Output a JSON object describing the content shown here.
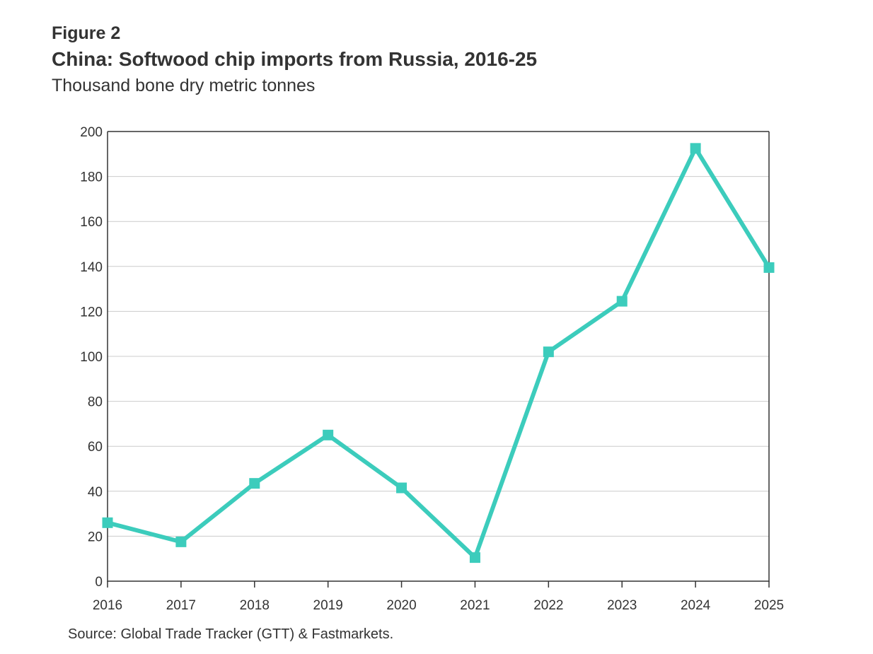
{
  "header": {
    "figure_label": "Figure 2",
    "title": "China: Softwood chip imports from Russia, 2016-25",
    "subtitle": "Thousand bone dry metric tonnes"
  },
  "footer": {
    "source": "Source: Global Trade Tracker (GTT) & Fastmarkets."
  },
  "chart_data": {
    "type": "line",
    "title": "China: Softwood chip imports from Russia, 2016-25",
    "subtitle": "Thousand bone dry metric tonnes",
    "xlabel": "",
    "ylabel": "",
    "x": [
      "2016",
      "2017",
      "2018",
      "2019",
      "2020",
      "2021",
      "2022",
      "2023",
      "2024",
      "2025"
    ],
    "series": [
      {
        "values": [
          26,
          17.5,
          43.5,
          65,
          41.5,
          10.5,
          102,
          124.5,
          192.5,
          139.5
        ],
        "color": "#3cccbc",
        "marker": "square"
      }
    ],
    "ylim": [
      0,
      200
    ],
    "yticks": [
      "0",
      "20",
      "40",
      "60",
      "80",
      "100",
      "120",
      "140",
      "160",
      "180",
      "200"
    ],
    "grid": "horizontal",
    "legend": "none",
    "colors": {
      "line": "#3cccbc",
      "grid": "#cccccc",
      "axis": "#333333",
      "text": "#333333"
    }
  }
}
